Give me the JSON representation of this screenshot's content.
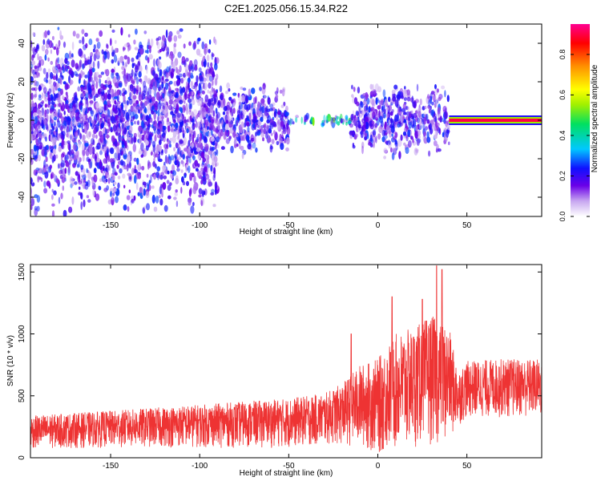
{
  "title": "C2E1.2025.056.15.34.R22",
  "colors": {
    "snr_line": "#ee3333",
    "axis": "#000000"
  },
  "colorbar": {
    "label": "Normalized spectral amplitude",
    "ticks": [
      "0.0",
      "0.2",
      "0.4",
      "0.6",
      "0.8"
    ],
    "tick_values": [
      0.0,
      0.2,
      0.4,
      0.6,
      0.8
    ],
    "range": [
      0,
      0.95
    ],
    "colormap": "rainbow (white-violet-blue-cyan-green-yellow-orange-red-magenta)"
  },
  "chart_data": [
    {
      "type": "heatmap",
      "title": "C2E1.2025.056.15.34.R22",
      "xlabel": "Height of straight line (km)",
      "ylabel": "Frequency (Hz)",
      "xlim": [
        -195,
        92
      ],
      "ylim": [
        -50,
        50
      ],
      "xticks": [
        -150,
        -100,
        -50,
        0,
        50
      ],
      "xtick_labels": [
        "-150",
        "-100",
        "-50",
        "0",
        "50"
      ],
      "yticks": [
        -40,
        -20,
        0,
        20,
        40
      ],
      "ytick_labels": [
        "-40",
        "-20",
        "0",
        "20",
        "40"
      ],
      "features": [
        {
          "x_range": [
            -195,
            -90
          ],
          "freq_range": [
            -50,
            50
          ],
          "amplitude": 0.2,
          "desc": "broadband noise"
        },
        {
          "x_range": [
            -90,
            -50
          ],
          "freq_range": [
            -20,
            20
          ],
          "amplitude": 0.2
        },
        {
          "x_range": [
            -50,
            -15
          ],
          "freq_range": [
            -3,
            3
          ],
          "amplitude": 0.35
        },
        {
          "x_range": [
            -15,
            40
          ],
          "freq_range": [
            -20,
            20
          ],
          "amplitude": 0.2
        },
        {
          "x_range": [
            40,
            92
          ],
          "freq_range": [
            -1,
            1
          ],
          "amplitude": 0.9,
          "desc": "narrow band at 0 Hz"
        }
      ]
    },
    {
      "type": "line",
      "xlabel": "Height of straight line (km)",
      "ylabel": "SNR (10 * v/v)",
      "xlim": [
        -195,
        92
      ],
      "ylim": [
        0,
        1560
      ],
      "xticks": [
        -150,
        -100,
        -50,
        0,
        50
      ],
      "xtick_labels": [
        "-150",
        "-100",
        "-50",
        "0",
        "50"
      ],
      "yticks": [
        0,
        500,
        1000,
        1500
      ],
      "ytick_labels": [
        "0",
        "500",
        "1000",
        "1500"
      ],
      "series": [
        {
          "x": [
            -195,
            -150,
            -100,
            -50,
            -30,
            -20,
            -10,
            0,
            10,
            20,
            30,
            40,
            45,
            50,
            70,
            92
          ],
          "y_low": [
            70,
            80,
            80,
            80,
            100,
            100,
            80,
            20,
            50,
            80,
            100,
            120,
            250,
            320,
            320,
            320
          ],
          "y_high": [
            340,
            380,
            430,
            480,
            520,
            600,
            750,
            800,
            1000,
            1050,
            1150,
            1050,
            700,
            780,
            800,
            800
          ],
          "peaks": [
            {
              "x": -15,
              "y": 1000
            },
            {
              "x": 8,
              "y": 1300
            },
            {
              "x": 25,
              "y": 1280
            },
            {
              "x": 33,
              "y": 1550
            },
            {
              "x": 36,
              "y": 1520
            }
          ]
        }
      ]
    }
  ]
}
